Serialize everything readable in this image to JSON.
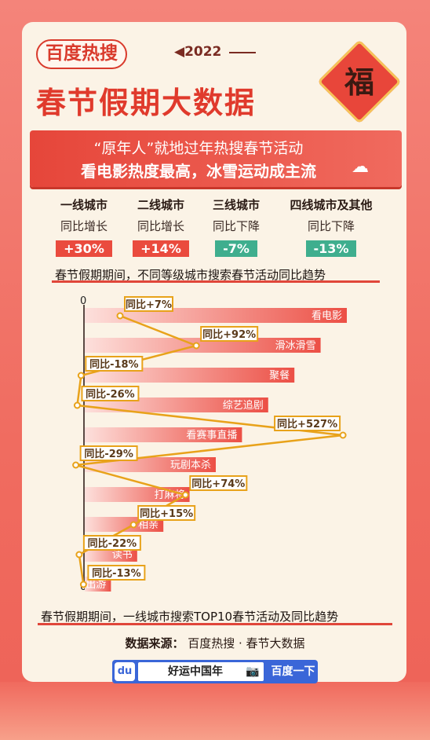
{
  "header": {
    "brand": "百度热搜",
    "year": "◀2022",
    "title": "春节假期大数据",
    "fu": "福"
  },
  "banner": {
    "line1": "“原年人”就地过年热搜春节活动",
    "line2": "看电影热度最高，冰雪运动成主流"
  },
  "tiers": [
    {
      "name": "一线城市",
      "trend": "同比增长",
      "value": "+30%",
      "color": "#ea4b3e"
    },
    {
      "name": "二线城市",
      "trend": "同比增长",
      "value": "+14%",
      "color": "#ea4b3e"
    },
    {
      "name": "三线城市",
      "trend": "同比下降",
      "value": "-7%",
      "color": "#3fae8e"
    },
    {
      "name": "四线城市及其他",
      "trend": "同比下降",
      "value": "-13%",
      "color": "#3fae8e"
    }
  ],
  "caption_tiers": "春节假期期间，不同等级城市搜索春节活动同比趋势",
  "caption_top10": "春节假期期间，一线城市搜索TOP10春节活动及同比趋势",
  "chart_data": {
    "type": "bar",
    "categories": [
      "看电影",
      "滑冰滑雪",
      "聚餐",
      "综艺追剧",
      "看赛事直播",
      "玩剧本杀",
      "打麻将",
      "相亲",
      "读书",
      "出游"
    ],
    "values": [
      10,
      9,
      8,
      7,
      6,
      5,
      4,
      3,
      2,
      1
    ],
    "yoy_labels": [
      "同比+7%",
      "同比+92%",
      "同比-18%",
      "同比-26%",
      "同比+527%",
      "同比-29%",
      "同比+74%",
      "同比+15%",
      "同比-22%",
      "同比-13%"
    ],
    "yoy_values": [
      7,
      92,
      -18,
      -26,
      527,
      -29,
      74,
      15,
      -22,
      -13
    ],
    "axis_zero_label": "0",
    "bar_color": "#ec4f45",
    "line_color": "#e8a21a"
  },
  "footer": {
    "source_label": "数据来源：",
    "source_value": "百度热搜 · 春节大数据",
    "search_logo": "du",
    "search_text": "好运中国年",
    "search_button": "百度一下"
  }
}
